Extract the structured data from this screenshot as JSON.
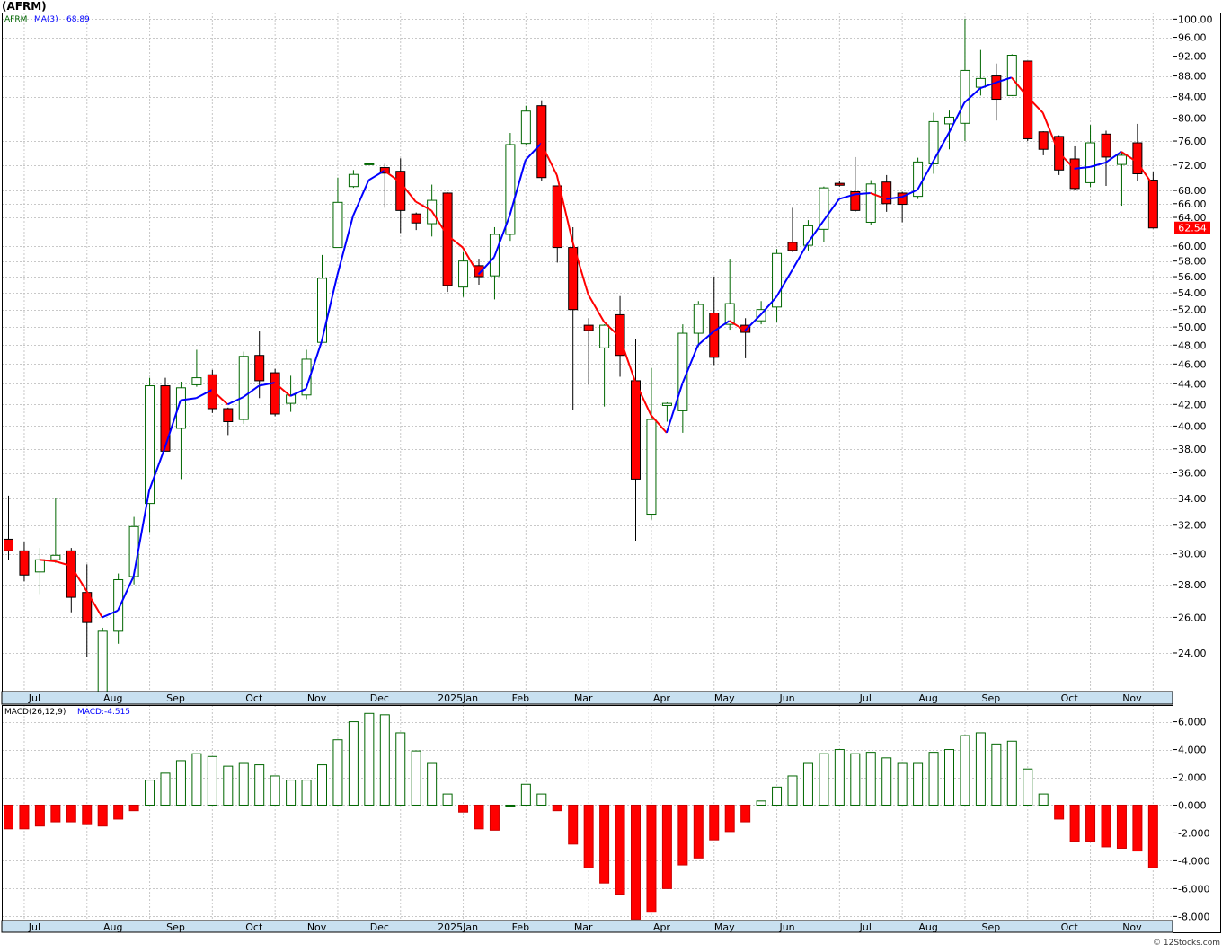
{
  "title": "(AFRM)",
  "watermark": "© 12Stocks.com",
  "price_panel": {
    "symbol": "AFRM",
    "ma_label": "MA(3)",
    "ma_value": "68.89",
    "last_price": "62.54",
    "y_ticks": [
      "24.00",
      "26.00",
      "28.00",
      "30.00",
      "32.00",
      "34.00",
      "36.00",
      "38.00",
      "40.00",
      "42.00",
      "44.00",
      "46.00",
      "48.00",
      "50.00",
      "52.00",
      "54.00",
      "56.00",
      "58.00",
      "60.00",
      "64.00",
      "66.00",
      "68.00",
      "72.00",
      "76.00",
      "80.00",
      "84.00",
      "88.00",
      "92.00",
      "96.00",
      "100.00"
    ],
    "x_labels": [
      "Jul",
      "Aug",
      "Sep",
      "Oct",
      "Nov",
      "Dec",
      "2025Jan",
      "Feb",
      "Mar",
      "Apr",
      "May",
      "Jun",
      "Jul",
      "Aug",
      "Sep",
      "Oct",
      "Nov"
    ]
  },
  "macd_panel": {
    "label": "MACD(26,12,9)",
    "value_label": "MACD:-4.515",
    "y_ticks": [
      "-8.000",
      "-6.000",
      "-4.000",
      "-2.000",
      "0.000",
      "2.000",
      "4.000",
      "6.000"
    ],
    "x_labels": [
      "Jul",
      "Aug",
      "Sep",
      "Oct",
      "Nov",
      "Dec",
      "2025Jan",
      "Feb",
      "Mar",
      "Apr",
      "May",
      "Jun",
      "Jul",
      "Aug",
      "Sep",
      "Oct",
      "Nov"
    ]
  },
  "colors": {
    "up": "#006600",
    "down": "#ff0000",
    "ma_up": "#0000ff",
    "ma_down": "#ff0000",
    "grid": "#c8c8c8",
    "axis_band": "#c8e0f0"
  },
  "chart_data": [
    {
      "type": "candlestick",
      "scale": "log",
      "ylim": [
        22.0,
        101.5
      ],
      "candles": [
        {
          "o": 31.0,
          "h": 34.2,
          "l": 29.6,
          "c": 30.2
        },
        {
          "o": 30.2,
          "h": 30.8,
          "l": 28.2,
          "c": 28.6
        },
        {
          "o": 28.8,
          "h": 30.4,
          "l": 27.4,
          "c": 29.6
        },
        {
          "o": 29.6,
          "h": 34.0,
          "l": 29.4,
          "c": 29.9
        },
        {
          "o": 30.2,
          "h": 30.4,
          "l": 26.3,
          "c": 27.2
        },
        {
          "o": 27.5,
          "h": 29.3,
          "l": 23.8,
          "c": 25.7
        },
        {
          "o": 22.0,
          "h": 25.4,
          "l": 21.7,
          "c": 25.2
        },
        {
          "o": 25.2,
          "h": 28.7,
          "l": 24.5,
          "c": 28.3
        },
        {
          "o": 28.5,
          "h": 32.6,
          "l": 28.0,
          "c": 31.9
        },
        {
          "o": 33.6,
          "h": 44.6,
          "l": 31.5,
          "c": 43.8
        },
        {
          "o": 43.8,
          "h": 44.6,
          "l": 37.8,
          "c": 37.8
        },
        {
          "o": 39.8,
          "h": 44.2,
          "l": 35.5,
          "c": 43.6
        },
        {
          "o": 43.9,
          "h": 47.5,
          "l": 43.7,
          "c": 44.6
        },
        {
          "o": 44.9,
          "h": 45.4,
          "l": 41.2,
          "c": 41.6
        },
        {
          "o": 41.6,
          "h": 41.7,
          "l": 39.2,
          "c": 40.4
        },
        {
          "o": 40.6,
          "h": 47.3,
          "l": 40.2,
          "c": 46.8
        },
        {
          "o": 46.9,
          "h": 49.5,
          "l": 42.6,
          "c": 44.3
        },
        {
          "o": 45.1,
          "h": 45.5,
          "l": 40.9,
          "c": 41.1
        },
        {
          "o": 42.1,
          "h": 44.8,
          "l": 41.3,
          "c": 42.9
        },
        {
          "o": 42.9,
          "h": 47.5,
          "l": 42.5,
          "c": 46.5
        },
        {
          "o": 48.3,
          "h": 58.8,
          "l": 48.3,
          "c": 55.8
        },
        {
          "o": 59.8,
          "h": 70.0,
          "l": 59.8,
          "c": 66.2
        },
        {
          "o": 68.6,
          "h": 71.2,
          "l": 68.4,
          "c": 70.5
        },
        {
          "o": 72.1,
          "h": 72.3,
          "l": 72.1,
          "c": 72.2
        },
        {
          "o": 71.6,
          "h": 72.2,
          "l": 65.4,
          "c": 70.7
        },
        {
          "o": 71.0,
          "h": 73.1,
          "l": 61.8,
          "c": 65.0
        },
        {
          "o": 64.5,
          "h": 64.7,
          "l": 62.2,
          "c": 63.2
        },
        {
          "o": 63.1,
          "h": 68.9,
          "l": 61.3,
          "c": 66.5
        },
        {
          "o": 67.6,
          "h": 67.7,
          "l": 54.1,
          "c": 54.9
        },
        {
          "o": 54.7,
          "h": 59.2,
          "l": 53.5,
          "c": 58.0
        },
        {
          "o": 57.4,
          "h": 58.3,
          "l": 55.0,
          "c": 56.0
        },
        {
          "o": 56.1,
          "h": 62.6,
          "l": 53.2,
          "c": 61.6
        },
        {
          "o": 61.6,
          "h": 77.4,
          "l": 60.7,
          "c": 75.4
        },
        {
          "o": 75.6,
          "h": 82.3,
          "l": 75.4,
          "c": 81.3
        },
        {
          "o": 82.3,
          "h": 83.3,
          "l": 69.4,
          "c": 70.0
        },
        {
          "o": 68.7,
          "h": 68.7,
          "l": 57.8,
          "c": 59.8
        },
        {
          "o": 59.8,
          "h": 62.6,
          "l": 41.5,
          "c": 52.0
        },
        {
          "o": 50.2,
          "h": 51.0,
          "l": 43.9,
          "c": 49.6
        },
        {
          "o": 47.7,
          "h": 50.3,
          "l": 41.8,
          "c": 50.2
        },
        {
          "o": 51.4,
          "h": 53.6,
          "l": 44.7,
          "c": 46.9
        },
        {
          "o": 44.3,
          "h": 48.7,
          "l": 30.9,
          "c": 35.5
        },
        {
          "o": 32.8,
          "h": 45.6,
          "l": 32.4,
          "c": 40.6
        },
        {
          "o": 41.9,
          "h": 42.2,
          "l": 40.4,
          "c": 42.1
        },
        {
          "o": 41.4,
          "h": 50.3,
          "l": 39.4,
          "c": 49.3
        },
        {
          "o": 49.3,
          "h": 53.0,
          "l": 47.8,
          "c": 52.6
        },
        {
          "o": 51.6,
          "h": 56.0,
          "l": 45.9,
          "c": 46.7
        },
        {
          "o": 50.3,
          "h": 58.3,
          "l": 49.7,
          "c": 52.7
        },
        {
          "o": 50.2,
          "h": 51.0,
          "l": 46.6,
          "c": 49.4
        },
        {
          "o": 50.7,
          "h": 53.0,
          "l": 50.3,
          "c": 52.0
        },
        {
          "o": 52.3,
          "h": 59.6,
          "l": 50.6,
          "c": 59.0
        },
        {
          "o": 60.5,
          "h": 65.4,
          "l": 59.2,
          "c": 59.4
        },
        {
          "o": 60.1,
          "h": 63.6,
          "l": 59.4,
          "c": 62.8
        },
        {
          "o": 62.3,
          "h": 68.6,
          "l": 60.6,
          "c": 68.4
        },
        {
          "o": 69.1,
          "h": 69.5,
          "l": 68.6,
          "c": 68.8
        },
        {
          "o": 67.8,
          "h": 73.3,
          "l": 64.8,
          "c": 65.0
        },
        {
          "o": 63.3,
          "h": 69.6,
          "l": 62.9,
          "c": 69.0
        },
        {
          "o": 69.3,
          "h": 70.4,
          "l": 64.8,
          "c": 66.0
        },
        {
          "o": 67.6,
          "h": 67.8,
          "l": 63.3,
          "c": 65.9
        },
        {
          "o": 67.1,
          "h": 73.2,
          "l": 66.7,
          "c": 72.5
        },
        {
          "o": 72.2,
          "h": 81.0,
          "l": 70.6,
          "c": 79.4
        },
        {
          "o": 79.0,
          "h": 81.4,
          "l": 74.6,
          "c": 80.2
        },
        {
          "o": 79.1,
          "h": 100.1,
          "l": 76.0,
          "c": 89.1
        },
        {
          "o": 85.8,
          "h": 93.3,
          "l": 84.2,
          "c": 87.5
        },
        {
          "o": 88.0,
          "h": 90.5,
          "l": 79.6,
          "c": 83.5
        },
        {
          "o": 84.2,
          "h": 92.4,
          "l": 84.1,
          "c": 92.2
        },
        {
          "o": 91.0,
          "h": 91.0,
          "l": 76.0,
          "c": 76.4
        },
        {
          "o": 77.6,
          "h": 77.7,
          "l": 73.6,
          "c": 74.6
        },
        {
          "o": 76.8,
          "h": 77.0,
          "l": 70.4,
          "c": 71.2
        },
        {
          "o": 73.0,
          "h": 75.1,
          "l": 68.1,
          "c": 68.3
        },
        {
          "o": 69.2,
          "h": 78.8,
          "l": 68.5,
          "c": 75.7
        },
        {
          "o": 77.2,
          "h": 77.8,
          "l": 68.7,
          "c": 73.3
        },
        {
          "o": 72.1,
          "h": 74.2,
          "l": 65.7,
          "c": 73.6
        },
        {
          "o": 75.7,
          "h": 79.0,
          "l": 69.5,
          "c": 70.6
        },
        {
          "o": 69.6,
          "h": 70.9,
          "l": 62.4,
          "c": 62.5
        }
      ],
      "ma": [
        null,
        null,
        29.6,
        29.5,
        29.2,
        27.6,
        26.0,
        26.4,
        28.5,
        34.6,
        38.1,
        42.4,
        42.6,
        43.4,
        42.0,
        42.7,
        43.8,
        44.1,
        42.8,
        43.5,
        48.4,
        56.2,
        64.2,
        69.6,
        71.1,
        69.3,
        66.3,
        65.0,
        61.5,
        59.8,
        56.3,
        58.5,
        64.3,
        72.8,
        75.6,
        70.4,
        60.6,
        53.8,
        50.6,
        48.9,
        44.2,
        41.0,
        39.4,
        44.0,
        48.0,
        49.5,
        50.7,
        49.6,
        51.4,
        53.5,
        56.8,
        60.4,
        63.5,
        66.7,
        67.4,
        67.6,
        66.7,
        67.0,
        68.1,
        72.6,
        77.4,
        82.9,
        85.6,
        86.7,
        87.7,
        84.0,
        81.0,
        74.1,
        71.4,
        71.7,
        72.4,
        74.2,
        72.5,
        68.89
      ]
    },
    {
      "type": "bar",
      "title": "MACD(26,12,9)",
      "ylim": [
        -8.3,
        7.2
      ],
      "values": [
        -1.7,
        -1.7,
        -1.5,
        -1.2,
        -1.2,
        -1.4,
        -1.5,
        -1.0,
        -0.4,
        1.8,
        2.3,
        3.2,
        3.7,
        3.5,
        2.8,
        3.0,
        2.9,
        2.1,
        1.8,
        1.8,
        2.9,
        4.7,
        6.0,
        6.6,
        6.5,
        5.2,
        3.9,
        3.0,
        0.8,
        -0.5,
        -1.7,
        -1.8,
        0.0,
        1.5,
        0.8,
        -0.4,
        -2.8,
        -4.5,
        -5.6,
        -6.4,
        -8.2,
        -7.7,
        -6.0,
        -4.3,
        -3.8,
        -2.5,
        -1.9,
        -1.2,
        0.3,
        1.3,
        2.1,
        3.0,
        3.7,
        4.0,
        3.7,
        3.8,
        3.4,
        3.0,
        3.0,
        3.8,
        4.0,
        5.0,
        5.2,
        4.4,
        4.6,
        2.6,
        0.8,
        -1.0,
        -2.6,
        -2.6,
        -3.0,
        -3.1,
        -3.3,
        -4.5
      ]
    }
  ]
}
